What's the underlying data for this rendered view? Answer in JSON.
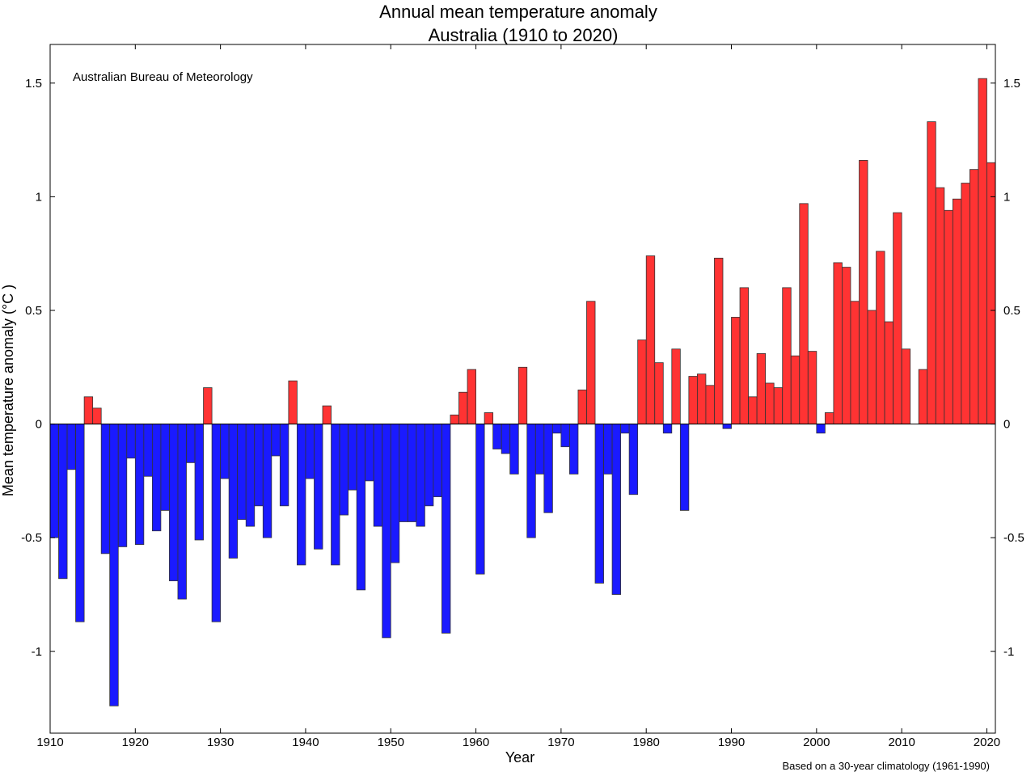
{
  "chart_data": {
    "type": "bar",
    "title_line1": "Annual mean temperature anomaly",
    "title_line2": "Australia (1910 to 2020)",
    "xlabel": "Year",
    "ylabel": "Mean temperature anomaly (°C )",
    "source_label": "Australian Bureau of Meteorology",
    "footnote": "Based on a 30-year climatology (1961-1990)",
    "xlim": [
      1910,
      2021
    ],
    "ylim": [
      -1.36,
      1.67
    ],
    "x_ticks": [
      1910,
      1920,
      1930,
      1940,
      1950,
      1960,
      1970,
      1980,
      1990,
      2000,
      2010,
      2020
    ],
    "y_ticks": [
      -1,
      -0.5,
      0,
      0.5,
      1,
      1.5
    ],
    "y_tick_labels": [
      "-1",
      "-0.5",
      "0",
      "0.5",
      "1",
      "1.5"
    ],
    "grid": false,
    "colors": {
      "positive": "#ff3333",
      "negative": "#1a1aff",
      "edge": "#333333"
    },
    "years": [
      1910,
      1911,
      1912,
      1913,
      1914,
      1915,
      1916,
      1917,
      1918,
      1919,
      1920,
      1921,
      1922,
      1923,
      1924,
      1925,
      1926,
      1927,
      1928,
      1929,
      1930,
      1931,
      1932,
      1933,
      1934,
      1935,
      1936,
      1937,
      1938,
      1939,
      1940,
      1941,
      1942,
      1943,
      1944,
      1945,
      1946,
      1947,
      1948,
      1949,
      1950,
      1951,
      1952,
      1953,
      1954,
      1955,
      1956,
      1957,
      1958,
      1959,
      1960,
      1961,
      1962,
      1963,
      1964,
      1965,
      1966,
      1967,
      1968,
      1969,
      1970,
      1971,
      1972,
      1973,
      1974,
      1975,
      1976,
      1977,
      1978,
      1979,
      1980,
      1981,
      1982,
      1983,
      1984,
      1985,
      1986,
      1987,
      1988,
      1989,
      1990,
      1991,
      1992,
      1993,
      1994,
      1995,
      1996,
      1997,
      1998,
      1999,
      2000,
      2001,
      2002,
      2003,
      2004,
      2005,
      2006,
      2007,
      2008,
      2009,
      2010,
      2011,
      2012,
      2013,
      2014,
      2015,
      2016,
      2017,
      2018,
      2019,
      2020
    ],
    "values": [
      -0.5,
      -0.68,
      -0.2,
      -0.87,
      0.12,
      0.07,
      -0.57,
      -1.24,
      -0.54,
      -0.15,
      -0.53,
      -0.23,
      -0.47,
      -0.38,
      -0.69,
      -0.77,
      -0.17,
      -0.51,
      0.16,
      -0.87,
      -0.24,
      -0.59,
      -0.42,
      -0.45,
      -0.36,
      -0.5,
      -0.14,
      -0.36,
      0.19,
      -0.62,
      -0.24,
      -0.55,
      0.08,
      -0.62,
      -0.4,
      -0.29,
      -0.73,
      -0.25,
      -0.45,
      -0.94,
      -0.61,
      -0.43,
      -0.43,
      -0.45,
      -0.36,
      -0.32,
      -0.92,
      0.04,
      0.14,
      0.24,
      -0.66,
      0.05,
      -0.11,
      -0.13,
      -0.22,
      0.25,
      -0.5,
      -0.22,
      -0.39,
      -0.04,
      -0.1,
      -0.22,
      0.15,
      0.54,
      -0.7,
      -0.22,
      -0.75,
      -0.04,
      -0.31,
      0.37,
      0.74,
      0.27,
      -0.04,
      0.33,
      -0.38,
      0.21,
      0.22,
      0.17,
      0.73,
      -0.02,
      0.47,
      0.6,
      0.12,
      0.31,
      0.18,
      0.16,
      0.6,
      0.3,
      0.97,
      0.32,
      -0.04,
      0.05,
      0.71,
      0.69,
      0.54,
      1.16,
      0.5,
      0.76,
      0.45,
      0.93,
      0.33,
      0.0,
      0.24,
      1.33,
      1.04,
      0.94,
      0.99,
      1.06,
      1.12,
      1.52,
      1.15
    ]
  }
}
